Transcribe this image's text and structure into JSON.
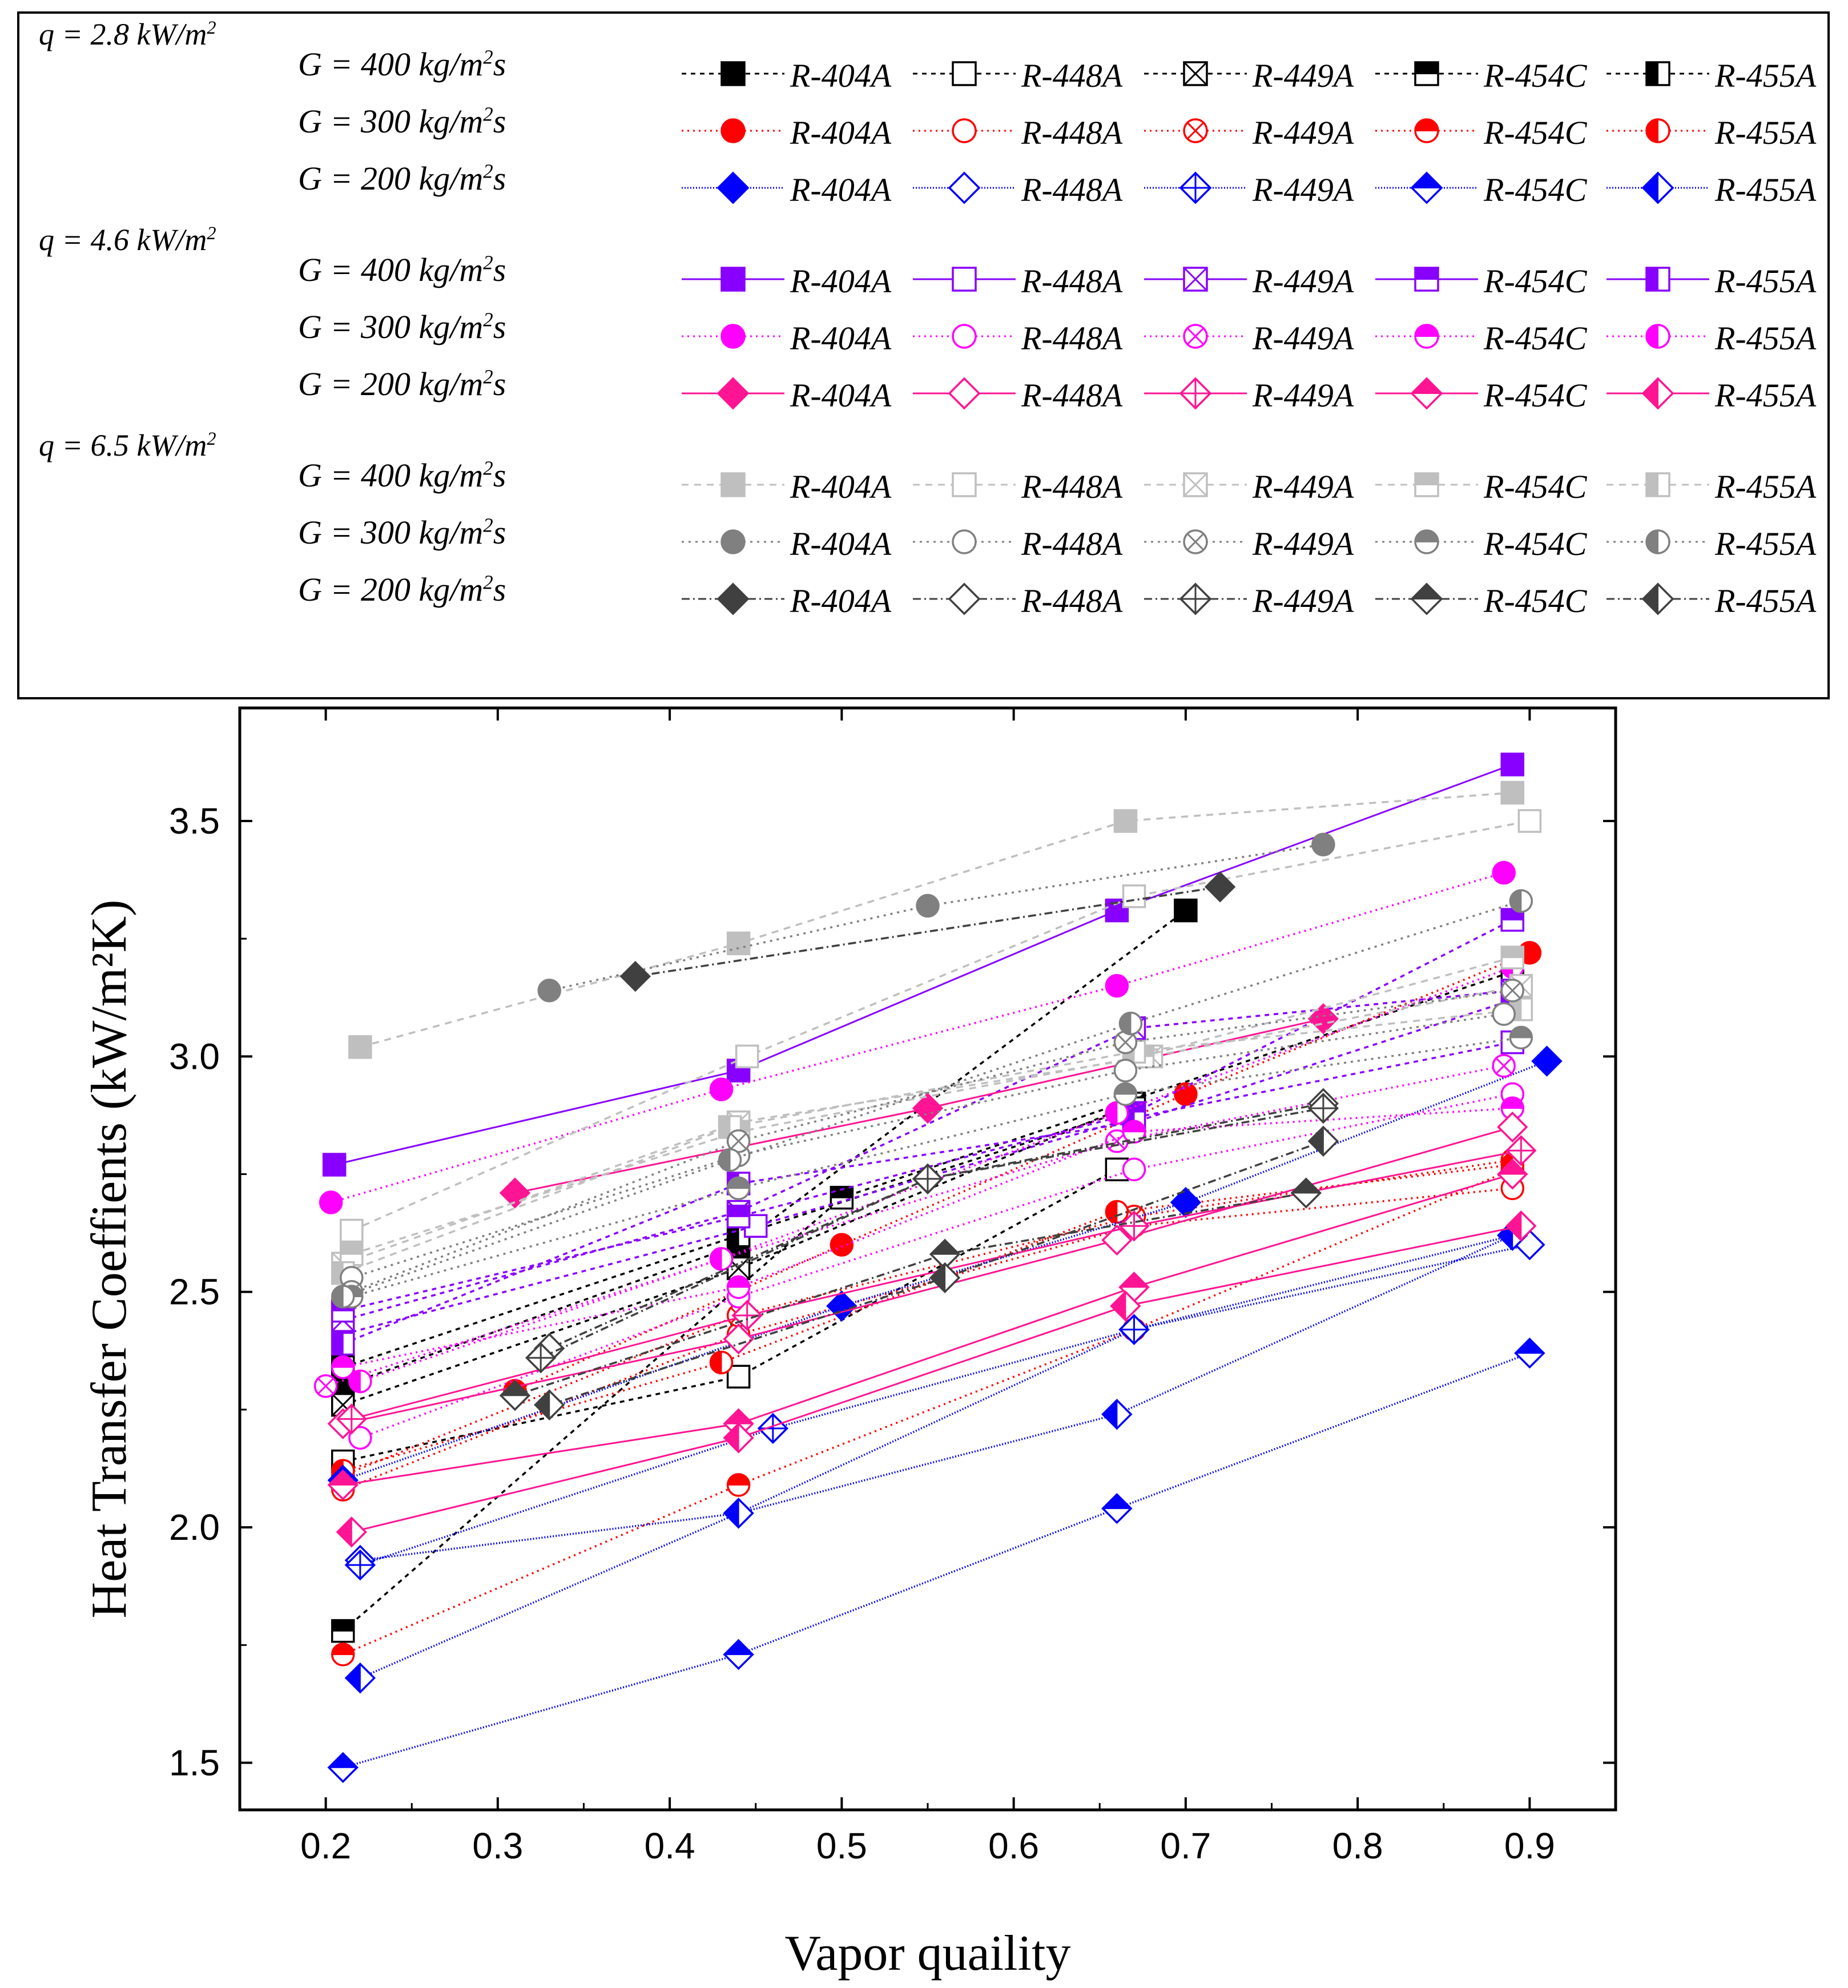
{
  "chart_data": {
    "type": "scatter",
    "xlabel": "Vapor quaility",
    "ylabel": "Heat Transfer Coeffients (kW/m²K)",
    "xlim": [
      0.15,
      0.95
    ],
    "ylim": [
      1.4,
      3.74
    ],
    "xticks": [
      0.2,
      0.3,
      0.4,
      0.5,
      0.6,
      0.7,
      0.8,
      0.9
    ],
    "xtick_labels": [
      "0.2",
      "0.3",
      "0.4",
      "0.5",
      "0.6",
      "0.7",
      "0.8",
      "0.9"
    ],
    "yticks": [
      1.5,
      2.0,
      2.5,
      3.0,
      3.5
    ],
    "ytick_labels": [
      "1.5",
      "2.0",
      "2.5",
      "3.0",
      "3.5"
    ],
    "refrigerants": [
      "R-404A",
      "R-448A",
      "R-449A",
      "R-454C",
      "R-455A"
    ],
    "legend_groups": [
      {
        "q_label": "q = 2.8 kW/m",
        "q_sup": "2",
        "rows": [
          {
            "G_label": "G = 400 kg/m",
            "G_sup": "2",
            "G_tail": "s",
            "color": "#000000",
            "marker": "square",
            "dash": "8,8"
          },
          {
            "G_label": "G = 300 kg/m",
            "G_sup": "2",
            "G_tail": "s",
            "color": "#ff0000",
            "marker": "circle",
            "dash": "3,7"
          },
          {
            "G_label": "G = 200 kg/m",
            "G_sup": "2",
            "G_tail": "s",
            "color": "#0000ff",
            "marker": "diamond",
            "dash": "2,3"
          }
        ]
      },
      {
        "q_label": "q = 4.6 kW/m",
        "q_sup": "2",
        "rows": [
          {
            "G_label": "G = 400 kg/m",
            "G_sup": "2",
            "G_tail": "s",
            "color": "#8800ff",
            "marker": "square",
            "dash": "none"
          },
          {
            "G_label": "G = 300 kg/m",
            "G_sup": "2",
            "G_tail": "s",
            "color": "#ff00ff",
            "marker": "circle",
            "dash": "3,7"
          },
          {
            "G_label": "G = 200 kg/m",
            "G_sup": "2",
            "G_tail": "s",
            "color": "#ff1493",
            "marker": "diamond",
            "dash": "none"
          }
        ]
      },
      {
        "q_label": "q = 6.5 kW/m",
        "q_sup": "2",
        "rows": [
          {
            "G_label": "G = 400 kg/m",
            "G_sup": "2",
            "G_tail": "s",
            "color": "#bfbfbf",
            "marker": "square",
            "dash": "12,10"
          },
          {
            "G_label": "G = 300 kg/m",
            "G_sup": "2",
            "G_tail": "s",
            "color": "#808080",
            "marker": "circle",
            "dash": "4,8"
          },
          {
            "G_label": "G = 200 kg/m",
            "G_sup": "2",
            "G_tail": "s",
            "color": "#404040",
            "marker": "diamond",
            "dash": "14,6,3,6"
          }
        ]
      }
    ],
    "series": [
      {
        "name": "q2.8 G400 R-404A",
        "color": "#000000",
        "marker": "square",
        "fill": "full",
        "dash": "8,8",
        "x": [
          0.21,
          0.44,
          0.7
        ],
        "y": [
          2.3,
          2.6,
          3.31
        ]
      },
      {
        "name": "q2.8 G400 R-448A",
        "color": "#000000",
        "marker": "square",
        "fill": "none",
        "dash": "8,8",
        "x": [
          0.21,
          0.44,
          0.66
        ],
        "y": [
          2.14,
          2.32,
          2.76
        ]
      },
      {
        "name": "q2.8 G400 R-449A",
        "color": "#000000",
        "marker": "square",
        "fill": "x",
        "dash": "8,8",
        "x": [
          0.21,
          0.44,
          0.67
        ],
        "y": [
          2.26,
          2.55,
          2.9
        ]
      },
      {
        "name": "q2.8 G400 R-454C",
        "color": "#000000",
        "marker": "square",
        "fill": "top",
        "dash": "8,8",
        "x": [
          0.21,
          0.5,
          0.89
        ],
        "y": [
          1.78,
          2.7,
          3.18
        ]
      },
      {
        "name": "q2.8 G400 R-455A",
        "color": "#000000",
        "marker": "square",
        "fill": "left",
        "dash": "8,8",
        "x": [
          0.21,
          0.44,
          0.67
        ],
        "y": [
          2.34,
          2.62,
          2.89
        ]
      },
      {
        "name": "q2.8 G300 R-404A",
        "color": "#ff0000",
        "marker": "circle",
        "fill": "full",
        "dash": "3,7",
        "x": [
          0.31,
          0.5,
          0.7,
          0.9
        ],
        "y": [
          2.29,
          2.6,
          2.92,
          3.22
        ]
      },
      {
        "name": "q2.8 G300 R-448A",
        "color": "#ff0000",
        "marker": "circle",
        "fill": "none",
        "dash": "3,7",
        "x": [
          0.21,
          0.44,
          0.67,
          0.89
        ],
        "y": [
          2.08,
          2.41,
          2.64,
          2.72
        ]
      },
      {
        "name": "q2.8 G300 R-449A",
        "color": "#ff0000",
        "marker": "circle",
        "fill": "x",
        "dash": "3,7",
        "x": [
          0.21,
          0.44,
          0.67,
          0.89
        ],
        "y": [
          2.11,
          2.45,
          2.66,
          2.78
        ]
      },
      {
        "name": "q2.8 G300 R-454C",
        "color": "#ff0000",
        "marker": "circle",
        "fill": "top",
        "dash": "3,7",
        "x": [
          0.21,
          0.44,
          0.67,
          0.89
        ],
        "y": [
          1.73,
          2.09,
          2.42,
          2.76
        ]
      },
      {
        "name": "q2.8 G300 R-455A",
        "color": "#ff0000",
        "marker": "circle",
        "fill": "left",
        "dash": "3,7",
        "x": [
          0.21,
          0.43,
          0.66,
          0.89
        ],
        "y": [
          2.12,
          2.35,
          2.67,
          2.77
        ]
      },
      {
        "name": "q2.8 G200 R-404A",
        "color": "#0000ff",
        "marker": "diamond",
        "fill": "full",
        "dash": "2,3",
        "x": [
          0.21,
          0.5,
          0.7,
          0.91
        ],
        "y": [
          2.1,
          2.47,
          2.69,
          2.99
        ]
      },
      {
        "name": "q2.8 G200 R-448A",
        "color": "#0000ff",
        "marker": "diamond",
        "fill": "none",
        "dash": "2,3",
        "x": [
          0.22,
          0.44,
          0.67,
          0.9
        ],
        "y": [
          1.93,
          2.03,
          2.42,
          2.6
        ]
      },
      {
        "name": "q2.8 G200 R-449A",
        "color": "#0000ff",
        "marker": "diamond",
        "fill": "x",
        "dash": "2,3",
        "x": [
          0.22,
          0.46,
          0.67,
          0.89
        ],
        "y": [
          1.92,
          2.21,
          2.42,
          2.62
        ]
      },
      {
        "name": "q2.8 G200 R-454C",
        "color": "#0000ff",
        "marker": "diamond",
        "fill": "top",
        "dash": "2,3",
        "x": [
          0.21,
          0.44,
          0.66,
          0.9
        ],
        "y": [
          1.49,
          1.73,
          2.04,
          2.37
        ]
      },
      {
        "name": "q2.8 G200 R-455A",
        "color": "#0000ff",
        "marker": "diamond",
        "fill": "left",
        "dash": "2,3",
        "x": [
          0.22,
          0.44,
          0.66,
          0.89
        ],
        "y": [
          1.68,
          2.03,
          2.24,
          2.62
        ]
      },
      {
        "name": "q4.6 G400 R-404A",
        "color": "#8800ff",
        "marker": "square",
        "fill": "full",
        "dash": "none",
        "x": [
          0.205,
          0.44,
          0.66,
          0.89
        ],
        "y": [
          2.77,
          2.97,
          3.31,
          3.62
        ]
      },
      {
        "name": "q4.6 G400 R-448A",
        "color": "#8800ff",
        "marker": "square",
        "fill": "none",
        "dash": "8,8",
        "x": [
          0.21,
          0.45,
          0.67,
          0.89
        ],
        "y": [
          2.41,
          2.64,
          2.87,
          3.03
        ]
      },
      {
        "name": "q4.6 G400 R-449A",
        "color": "#8800ff",
        "marker": "square",
        "fill": "x",
        "dash": "8,8",
        "x": [
          0.21,
          0.44,
          0.67,
          0.89
        ],
        "y": [
          2.44,
          2.67,
          3.06,
          3.14
        ]
      },
      {
        "name": "q4.6 G400 R-454C",
        "color": "#8800ff",
        "marker": "square",
        "fill": "top",
        "dash": "8,8",
        "x": [
          0.21,
          0.44,
          0.67,
          0.89
        ],
        "y": [
          2.46,
          2.66,
          2.88,
          3.29
        ]
      },
      {
        "name": "q4.6 G400 R-455A",
        "color": "#8800ff",
        "marker": "square",
        "fill": "left",
        "dash": "8,8",
        "x": [
          0.21,
          0.44,
          0.67,
          0.89
        ],
        "y": [
          2.39,
          2.73,
          2.86,
          3.12
        ]
      },
      {
        "name": "q4.6 G300 R-404A",
        "color": "#ff00ff",
        "marker": "circle",
        "fill": "full",
        "dash": "3,7",
        "x": [
          0.203,
          0.43,
          0.66,
          0.885
        ],
        "y": [
          2.69,
          2.93,
          3.15,
          3.39
        ]
      },
      {
        "name": "q4.6 G300 R-448A",
        "color": "#ff00ff",
        "marker": "circle",
        "fill": "none",
        "dash": "3,7",
        "x": [
          0.22,
          0.44,
          0.67,
          0.89
        ],
        "y": [
          2.19,
          2.49,
          2.76,
          2.92
        ]
      },
      {
        "name": "q4.6 G300 R-449A",
        "color": "#ff00ff",
        "marker": "circle",
        "fill": "x",
        "dash": "3,7",
        "x": [
          0.2,
          0.43,
          0.66,
          0.885
        ],
        "y": [
          2.3,
          2.57,
          2.82,
          2.98
        ]
      },
      {
        "name": "q4.6 G300 R-454C",
        "color": "#ff00ff",
        "marker": "circle",
        "fill": "top",
        "dash": "3,7",
        "x": [
          0.21,
          0.44,
          0.67,
          0.89
        ],
        "y": [
          2.34,
          2.51,
          2.84,
          2.89
        ]
      },
      {
        "name": "q4.6 G300 R-455A",
        "color": "#ff00ff",
        "marker": "circle",
        "fill": "left",
        "dash": "3,7",
        "x": [
          0.22,
          0.43,
          0.66,
          0.89
        ],
        "y": [
          2.31,
          2.57,
          2.88,
          3.19
        ]
      },
      {
        "name": "q4.6 G200 R-404A",
        "color": "#ff1493",
        "marker": "diamond",
        "fill": "full",
        "dash": "none",
        "x": [
          0.31,
          0.55,
          0.78
        ],
        "y": [
          2.71,
          2.89,
          3.08
        ]
      },
      {
        "name": "q4.6 G200 R-448A",
        "color": "#ff1493",
        "marker": "diamond",
        "fill": "none",
        "dash": "none",
        "x": [
          0.21,
          0.44,
          0.66,
          0.89
        ],
        "y": [
          2.22,
          2.4,
          2.61,
          2.85
        ]
      },
      {
        "name": "q4.6 G200 R-449A",
        "color": "#ff1493",
        "marker": "diamond",
        "fill": "x",
        "dash": "none",
        "x": [
          0.215,
          0.445,
          0.67,
          0.895
        ],
        "y": [
          2.23,
          2.45,
          2.64,
          2.8
        ]
      },
      {
        "name": "q4.6 G200 R-454C",
        "color": "#ff1493",
        "marker": "diamond",
        "fill": "top",
        "dash": "none",
        "x": [
          0.21,
          0.44,
          0.67,
          0.89
        ],
        "y": [
          2.09,
          2.22,
          2.51,
          2.75
        ]
      },
      {
        "name": "q4.6 G200 R-455A",
        "color": "#ff1493",
        "marker": "diamond",
        "fill": "left",
        "dash": "none",
        "x": [
          0.215,
          0.44,
          0.665,
          0.895
        ],
        "y": [
          1.99,
          2.19,
          2.47,
          2.64
        ]
      },
      {
        "name": "q6.5 G400 R-404A",
        "color": "#bfbfbf",
        "marker": "square",
        "fill": "full",
        "dash": "12,10",
        "x": [
          0.22,
          0.44,
          0.665,
          0.89
        ],
        "y": [
          3.02,
          3.24,
          3.5,
          3.56
        ]
      },
      {
        "name": "q6.5 G400 R-448A",
        "color": "#bfbfbf",
        "marker": "square",
        "fill": "none",
        "dash": "12,10",
        "x": [
          0.215,
          0.445,
          0.67,
          0.9
        ],
        "y": [
          2.63,
          3.0,
          3.34,
          3.5
        ]
      },
      {
        "name": "q6.5 G400 R-449A",
        "color": "#bfbfbf",
        "marker": "square",
        "fill": "x",
        "dash": "12,10",
        "x": [
          0.21,
          0.44,
          0.68,
          0.895
        ],
        "y": [
          2.56,
          2.86,
          3.0,
          3.15
        ]
      },
      {
        "name": "q6.5 G400 R-454C",
        "color": "#bfbfbf",
        "marker": "square",
        "fill": "top",
        "dash": "12,10",
        "x": [
          0.215,
          0.44,
          0.675,
          0.89
        ],
        "y": [
          2.58,
          2.84,
          3.0,
          3.21
        ]
      },
      {
        "name": "q6.5 G400 R-455A",
        "color": "#bfbfbf",
        "marker": "square",
        "fill": "left",
        "dash": "12,10",
        "x": [
          0.21,
          0.435,
          0.67,
          0.895
        ],
        "y": [
          2.54,
          2.85,
          3.01,
          3.1
        ]
      },
      {
        "name": "q6.5 G300 R-404A",
        "color": "#808080",
        "marker": "circle",
        "fill": "full",
        "dash": "4,8",
        "x": [
          0.33,
          0.55,
          0.78
        ],
        "y": [
          3.14,
          3.32,
          3.45
        ]
      },
      {
        "name": "q6.5 G300 R-448A",
        "color": "#808080",
        "marker": "circle",
        "fill": "none",
        "dash": "4,8",
        "x": [
          0.215,
          0.44,
          0.665,
          0.885
        ],
        "y": [
          2.53,
          2.79,
          2.97,
          3.09
        ]
      },
      {
        "name": "q6.5 G300 R-449A",
        "color": "#808080",
        "marker": "circle",
        "fill": "x",
        "dash": "4,8",
        "x": [
          0.215,
          0.44,
          0.665,
          0.89
        ],
        "y": [
          2.5,
          2.82,
          3.03,
          3.14
        ]
      },
      {
        "name": "q6.5 G300 R-454C",
        "color": "#808080",
        "marker": "circle",
        "fill": "top",
        "dash": "4,8",
        "x": [
          0.215,
          0.44,
          0.665,
          0.895
        ],
        "y": [
          2.49,
          2.72,
          2.92,
          3.04
        ]
      },
      {
        "name": "q6.5 G300 R-455A",
        "color": "#808080",
        "marker": "circle",
        "fill": "left",
        "dash": "4,8",
        "x": [
          0.21,
          0.435,
          0.668,
          0.895
        ],
        "y": [
          2.49,
          2.78,
          3.07,
          3.33
        ]
      },
      {
        "name": "q6.5 G200 R-404A",
        "color": "#404040",
        "marker": "diamond",
        "fill": "full",
        "dash": "14,6,3,6",
        "x": [
          0.38,
          0.72
        ],
        "y": [
          3.17,
          3.36
        ]
      },
      {
        "name": "q6.5 G200 R-448A",
        "color": "#404040",
        "marker": "diamond",
        "fill": "none",
        "dash": "14,6,3,6",
        "x": [
          0.33,
          0.55,
          0.78
        ],
        "y": [
          2.38,
          2.74,
          2.9
        ]
      },
      {
        "name": "q6.5 G200 R-449A",
        "color": "#404040",
        "marker": "diamond",
        "fill": "x",
        "dash": "14,6,3,6",
        "x": [
          0.325,
          0.55,
          0.78
        ],
        "y": [
          2.36,
          2.74,
          2.89
        ]
      },
      {
        "name": "q6.5 G200 R-454C",
        "color": "#404040",
        "marker": "diamond",
        "fill": "top",
        "dash": "14,6,3,6",
        "x": [
          0.31,
          0.56,
          0.77
        ],
        "y": [
          2.28,
          2.58,
          2.71
        ]
      },
      {
        "name": "q6.5 G200 R-455A",
        "color": "#404040",
        "marker": "diamond",
        "fill": "left",
        "dash": "14,6,3,6",
        "x": [
          0.33,
          0.56,
          0.78
        ],
        "y": [
          2.26,
          2.53,
          2.82
        ]
      }
    ]
  }
}
